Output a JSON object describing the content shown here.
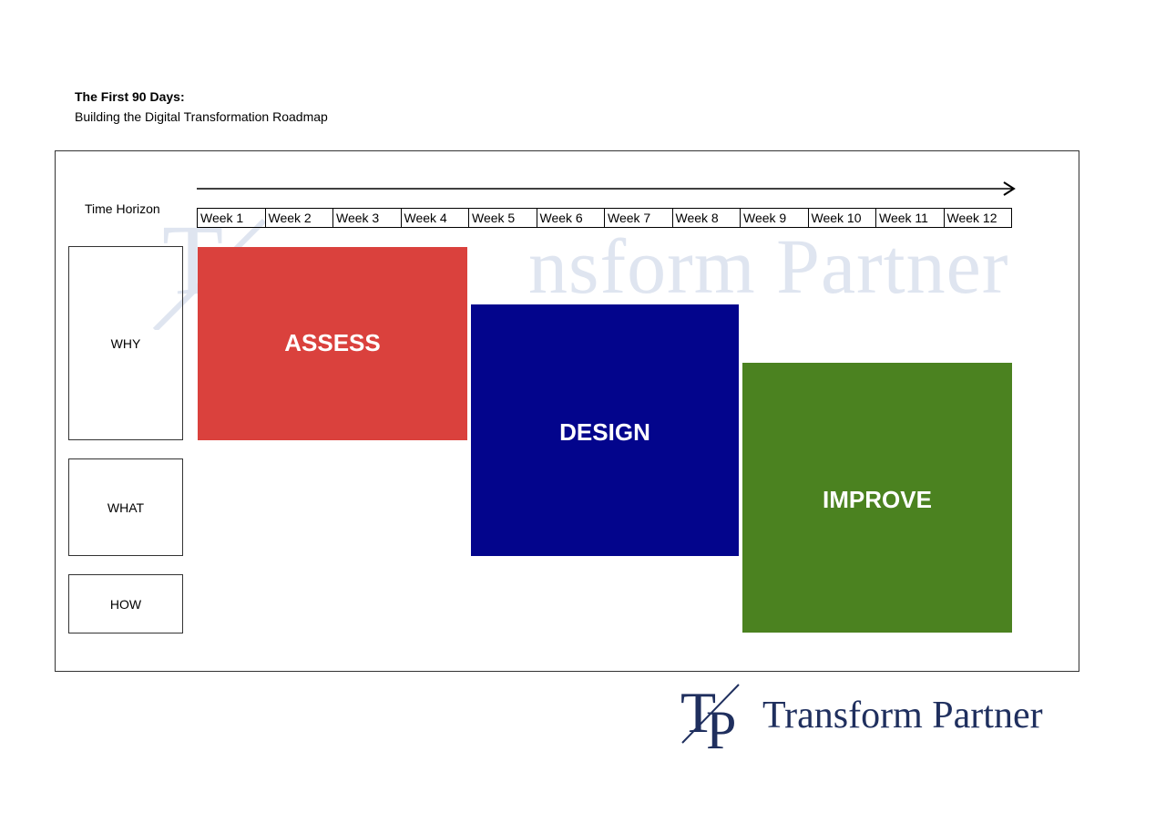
{
  "header": {
    "title": "The First 90 Days:",
    "subtitle": "Building the Digital Transformation Roadmap"
  },
  "roadmap": {
    "time_label": "Time Horizon",
    "weeks": [
      "Week 1",
      "Week 2",
      "Week 3",
      "Week 4",
      "Week 5",
      "Week 6",
      "Week 7",
      "Week 8",
      "Week 9",
      "Week 10",
      "Week 11",
      "Week 12"
    ],
    "rows": [
      "WHY",
      "WHAT",
      "HOW"
    ],
    "phases": [
      {
        "label": "ASSESS",
        "start_week": 1,
        "end_week": 4,
        "color": "#da413d"
      },
      {
        "label": "DESIGN",
        "start_week": 5,
        "end_week": 8,
        "color": "#03058c"
      },
      {
        "label": "IMPROVE",
        "start_week": 9,
        "end_week": 12,
        "color": "#4b8220"
      }
    ]
  },
  "brand": {
    "name": "Transform Partner",
    "monogram": "TP",
    "color": "#1f2f5e",
    "watermark_color": "#dfe5f0"
  }
}
